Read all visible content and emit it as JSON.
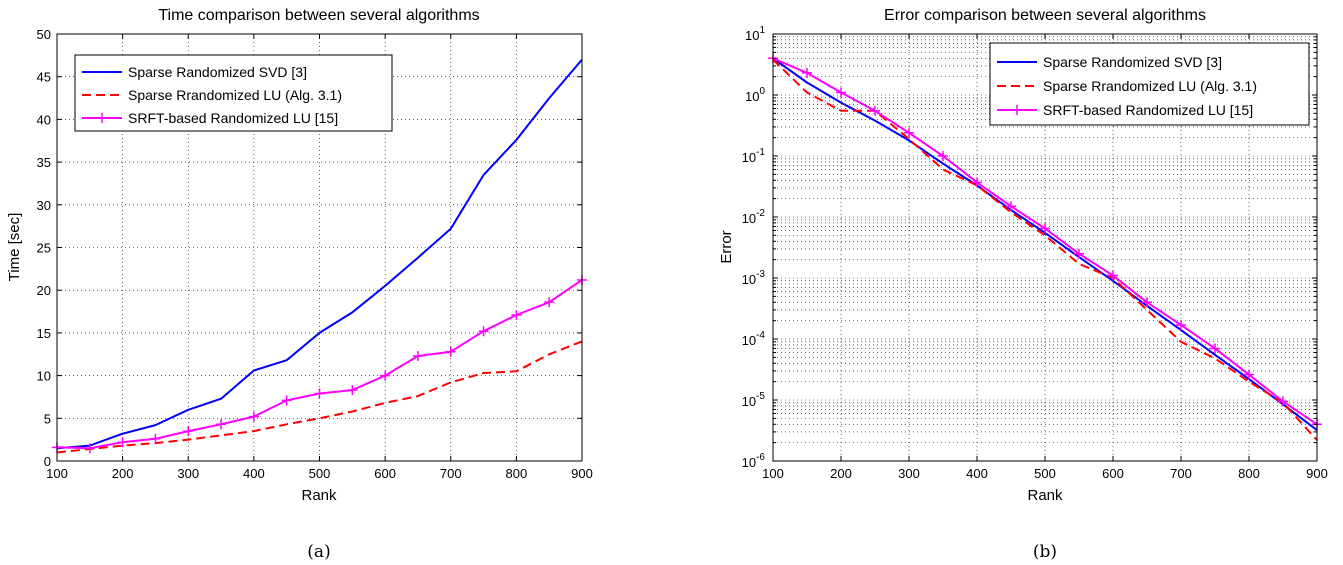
{
  "chart_data": [
    {
      "type": "line",
      "title": "Time comparison between several algorithms",
      "xlabel": "Rank",
      "ylabel": "Time [sec]",
      "xlim": [
        100,
        900
      ],
      "ylim": [
        0,
        50
      ],
      "xticks": [
        100,
        200,
        300,
        400,
        500,
        600,
        700,
        800,
        900
      ],
      "yticks": [
        0,
        5,
        10,
        15,
        20,
        25,
        30,
        35,
        40,
        45,
        50
      ],
      "grid": true,
      "legend_position": "top-left",
      "caption": "(a)",
      "series": [
        {
          "name": "Sparse Randomized SVD [3]",
          "color": "#0000ff",
          "style": "solid",
          "x": [
            100,
            150,
            200,
            250,
            300,
            350,
            400,
            450,
            500,
            550,
            600,
            650,
            700,
            750,
            800,
            850,
            900
          ],
          "values": [
            1.5,
            1.8,
            3.2,
            4.2,
            6.0,
            7.3,
            10.6,
            11.8,
            15.0,
            17.4,
            20.5,
            23.8,
            27.2,
            33.5,
            37.6,
            42.5,
            47.0
          ]
        },
        {
          "name": "Sparse Rrandomized LU (Alg. 3.1)",
          "color": "#ff0000",
          "style": "dashed",
          "x": [
            100,
            150,
            200,
            250,
            300,
            350,
            400,
            450,
            500,
            550,
            600,
            650,
            700,
            750,
            800,
            850,
            900
          ],
          "values": [
            1.0,
            1.4,
            1.8,
            2.1,
            2.5,
            3.0,
            3.5,
            4.3,
            5.0,
            5.8,
            6.8,
            7.6,
            9.2,
            10.3,
            10.5,
            12.5,
            14.0
          ]
        },
        {
          "name": "SRFT-based Randomized LU [15]",
          "color": "#ff00ff",
          "style": "solid-plus",
          "x": [
            100,
            150,
            200,
            250,
            300,
            350,
            400,
            450,
            500,
            550,
            600,
            650,
            700,
            750,
            800,
            850,
            900
          ],
          "values": [
            1.6,
            1.5,
            2.2,
            2.6,
            3.5,
            4.3,
            5.2,
            7.1,
            7.9,
            8.3,
            10.0,
            12.3,
            12.8,
            15.2,
            17.1,
            18.6,
            21.2
          ]
        }
      ]
    },
    {
      "type": "line",
      "title": "Error comparison between several algorithms",
      "xlabel": "Rank",
      "ylabel": "Error",
      "xlim": [
        100,
        900
      ],
      "ylim": [
        1e-06,
        10
      ],
      "yscale": "log",
      "xticks": [
        100,
        200,
        300,
        400,
        500,
        600,
        700,
        800,
        900
      ],
      "ytick_exponents": [
        "-6",
        "-5",
        "-4",
        "-3",
        "-2",
        "-1",
        "0",
        "1"
      ],
      "ytick_base": "10",
      "grid": true,
      "legend_position": "top-right",
      "caption": "(b)",
      "series": [
        {
          "name": "Sparse Randomized SVD [3]",
          "color": "#0000ff",
          "style": "solid",
          "x": [
            100,
            150,
            200,
            250,
            300,
            350,
            400,
            450,
            500,
            550,
            600,
            650,
            700,
            750,
            800,
            850,
            900
          ],
          "values": [
            4.0,
            1.6,
            0.75,
            0.38,
            0.18,
            0.075,
            0.033,
            0.013,
            0.0055,
            0.0022,
            0.0009,
            0.00035,
            0.00014,
            5.5e-05,
            2.2e-05,
            8.5e-06,
            3.2e-06
          ]
        },
        {
          "name": "Sparse Rrandomized LU (Alg. 3.1)",
          "color": "#ff0000",
          "style": "dashed",
          "x": [
            100,
            150,
            200,
            250,
            300,
            350,
            400,
            450,
            500,
            550,
            600,
            650,
            700,
            750,
            800,
            850,
            900
          ],
          "values": [
            3.8,
            1.1,
            0.55,
            0.55,
            0.19,
            0.06,
            0.033,
            0.012,
            0.005,
            0.0017,
            0.001,
            0.0003,
            9e-05,
            4.8e-05,
            2e-05,
            9e-06,
            2.2e-06
          ]
        },
        {
          "name": "SRFT-based Randomized LU [15]",
          "color": "#ff00ff",
          "style": "solid-plus",
          "x": [
            100,
            150,
            200,
            250,
            300,
            350,
            400,
            450,
            500,
            550,
            600,
            650,
            700,
            750,
            800,
            850,
            900
          ],
          "values": [
            4.0,
            2.3,
            1.1,
            0.55,
            0.24,
            0.1,
            0.037,
            0.015,
            0.0065,
            0.0025,
            0.0011,
            0.0004,
            0.00017,
            7e-05,
            2.6e-05,
            9.5e-06,
            4e-06
          ]
        }
      ]
    }
  ]
}
